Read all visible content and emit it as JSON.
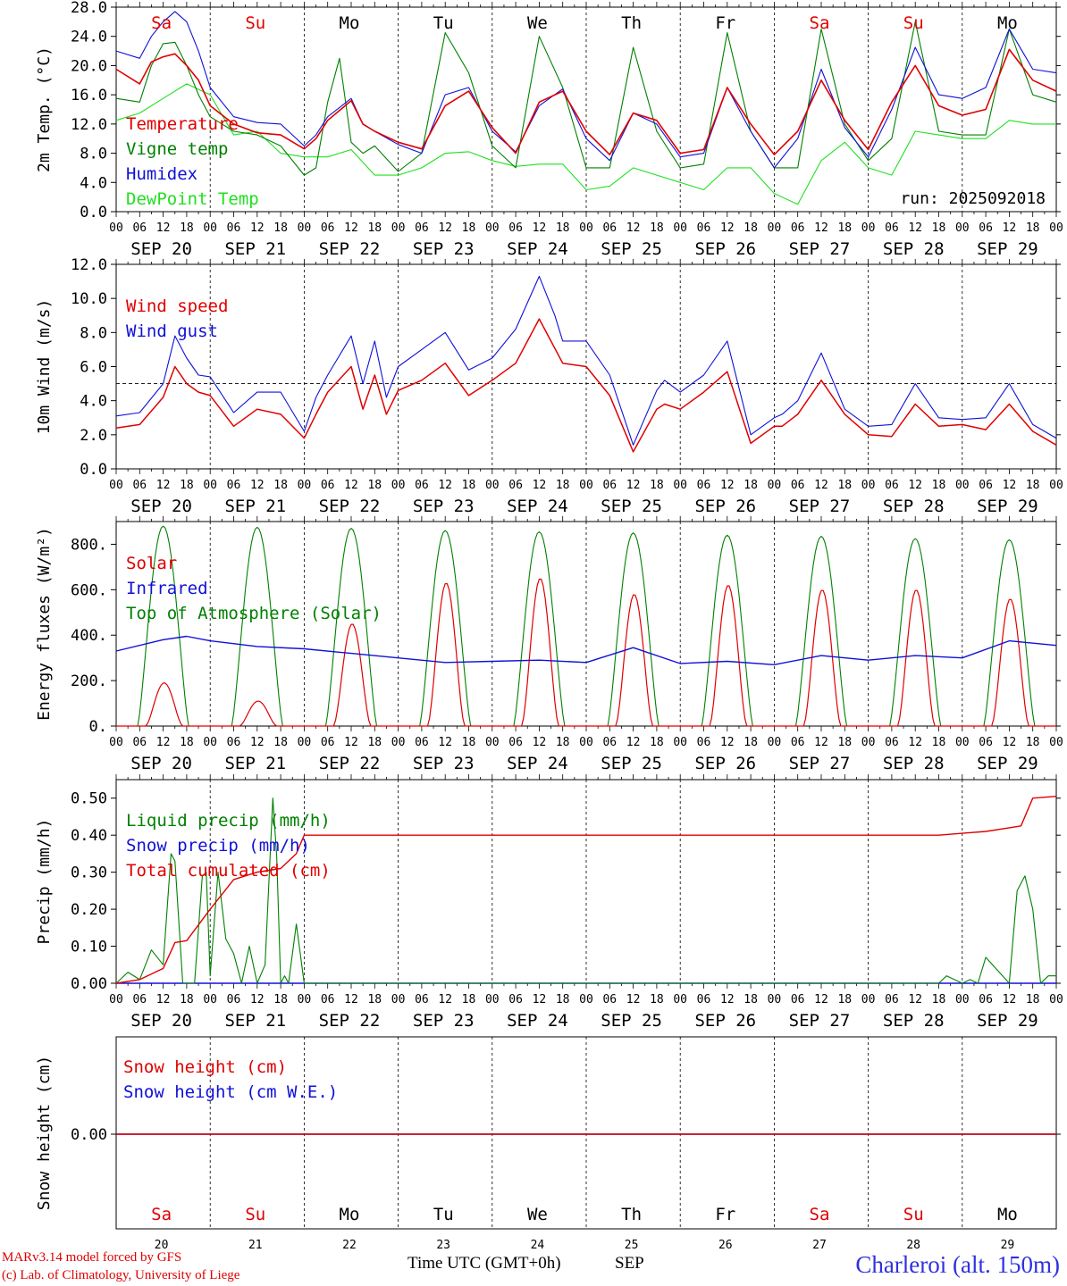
{
  "colors": {
    "red": "#e00000",
    "green": "#008000",
    "blue": "#1010d8",
    "lightgreen": "#20e020",
    "black": "#000000"
  },
  "days": {
    "names": [
      "Sa",
      "Su",
      "Mo",
      "Tu",
      "We",
      "Th",
      "Fr",
      "Sa",
      "Su",
      "Mo"
    ],
    "weekend": [
      true,
      true,
      false,
      false,
      false,
      false,
      false,
      true,
      true,
      false
    ],
    "dates": [
      "SEP 20",
      "SEP 21",
      "SEP 22",
      "SEP 23",
      "SEP 24",
      "SEP 25",
      "SEP 26",
      "SEP 27",
      "SEP 28",
      "SEP 29"
    ],
    "numbers": [
      "20",
      "21",
      "22",
      "23",
      "24",
      "25",
      "26",
      "27",
      "28",
      "29"
    ],
    "hour_labels": [
      "00",
      "06",
      "12",
      "18"
    ],
    "end_hour_label": "00"
  },
  "chart_data": [
    {
      "type": "line",
      "ylabel": "2m Temp. (°C)",
      "ylim": [
        0,
        28
      ],
      "yticks": [
        "0.0",
        "4.0",
        "8.0",
        "12.0",
        "16.0",
        "20.0",
        "24.0",
        "28.0"
      ],
      "x_unit": "hours since SEP 20 00 UTC",
      "annotation": "run: 2025092018",
      "series": [
        {
          "name": "Temperature",
          "color": "red",
          "x": [
            0,
            6,
            9,
            12,
            15,
            18,
            21,
            24,
            30,
            36,
            42,
            48,
            51,
            54,
            60,
            63,
            66,
            72,
            78,
            84,
            90,
            96,
            102,
            108,
            114,
            120,
            126,
            132,
            138,
            144,
            150,
            156,
            162,
            168,
            174,
            180,
            186,
            192,
            198,
            204,
            210,
            216,
            222,
            228,
            234,
            240
          ],
          "y": [
            19.5,
            17.5,
            20.5,
            21.2,
            21.6,
            20,
            18,
            14.5,
            12,
            10.8,
            10.5,
            8.6,
            10,
            12.5,
            15.2,
            12,
            11,
            9.5,
            8.6,
            14.5,
            16.5,
            11.5,
            8,
            15,
            16.5,
            11,
            7.8,
            13.5,
            12.5,
            8,
            8.5,
            17,
            12,
            7.8,
            11,
            18,
            12.5,
            8.5,
            15,
            20,
            14.5,
            13.2,
            14,
            22.2,
            18,
            16.5
          ]
        },
        {
          "name": "Vigne temp",
          "color": "green",
          "x": [
            0,
            6,
            9,
            12,
            15,
            18,
            21,
            24,
            30,
            36,
            42,
            48,
            51,
            54,
            57,
            60,
            63,
            66,
            72,
            78,
            84,
            90,
            96,
            102,
            108,
            114,
            120,
            126,
            132,
            138,
            144,
            150,
            156,
            162,
            168,
            174,
            180,
            186,
            192,
            198,
            204,
            210,
            216,
            222,
            228,
            234,
            240
          ],
          "y": [
            15.5,
            15,
            20,
            23,
            23.2,
            20,
            16,
            13,
            11,
            10.5,
            9,
            5,
            6,
            15,
            21,
            9.5,
            8,
            9,
            5.5,
            8,
            24.5,
            19,
            9,
            6,
            24,
            17,
            6,
            6,
            22.5,
            11,
            6,
            6.5,
            24.5,
            11,
            6,
            6,
            25,
            12,
            7,
            10,
            26,
            11,
            10.5,
            10.5,
            25,
            16,
            15
          ]
        },
        {
          "name": "Humidex",
          "color": "blue",
          "x": [
            0,
            6,
            9,
            12,
            15,
            18,
            21,
            24,
            30,
            36,
            42,
            48,
            51,
            54,
            60,
            63,
            66,
            72,
            78,
            84,
            90,
            96,
            102,
            108,
            114,
            120,
            126,
            132,
            138,
            144,
            150,
            156,
            162,
            168,
            174,
            180,
            186,
            192,
            198,
            204,
            210,
            216,
            222,
            228,
            234,
            240
          ],
          "y": [
            22,
            21,
            24,
            26,
            27.4,
            26,
            22,
            17,
            13,
            12.2,
            12,
            9,
            10.5,
            13,
            15.5,
            12,
            11,
            9.2,
            8,
            16,
            17,
            11,
            8.2,
            14.5,
            16.8,
            10,
            7,
            13.5,
            12,
            7.5,
            8,
            17,
            11,
            6,
            10,
            19.5,
            11.5,
            7.5,
            14,
            22.5,
            16,
            15.5,
            17,
            25,
            19.5,
            19
          ]
        },
        {
          "name": "DewPoint Temp",
          "color": "lightgreen",
          "x": [
            0,
            6,
            12,
            18,
            24,
            30,
            36,
            42,
            48,
            54,
            60,
            66,
            72,
            78,
            84,
            90,
            96,
            102,
            108,
            114,
            120,
            126,
            132,
            138,
            144,
            150,
            156,
            162,
            168,
            174,
            180,
            186,
            192,
            198,
            204,
            210,
            216,
            222,
            228,
            234,
            240
          ],
          "y": [
            12.5,
            13.5,
            15.5,
            17.5,
            16,
            10.5,
            11,
            8,
            7.5,
            7.5,
            8.5,
            5,
            5,
            6,
            8,
            8.2,
            7,
            6.2,
            6.5,
            6.5,
            3,
            3.5,
            6,
            5,
            4,
            3,
            6,
            6,
            2.5,
            1,
            7,
            9.5,
            6,
            5,
            11,
            10.5,
            10,
            10,
            12.5,
            12,
            12
          ]
        }
      ]
    },
    {
      "type": "line",
      "ylabel": "10m Wind (m/s)",
      "ylim": [
        0,
        12
      ],
      "yticks": [
        "0.0",
        "2.0",
        "4.0",
        "6.0",
        "8.0",
        "10.0",
        "12.0"
      ],
      "reference_line": 5.0,
      "series": [
        {
          "name": "Wind speed",
          "color": "red",
          "x": [
            0,
            6,
            12,
            15,
            18,
            21,
            24,
            30,
            36,
            42,
            48,
            51,
            54,
            60,
            63,
            66,
            69,
            72,
            78,
            84,
            90,
            96,
            102,
            108,
            114,
            120,
            126,
            132,
            138,
            140,
            144,
            150,
            156,
            162,
            168,
            170,
            174,
            180,
            186,
            192,
            198,
            204,
            210,
            216,
            222,
            228,
            234,
            240
          ],
          "y": [
            2.4,
            2.6,
            4.2,
            6,
            5,
            4.5,
            4.3,
            2.5,
            3.5,
            3.2,
            1.8,
            3.2,
            4.5,
            6,
            3.5,
            5.5,
            3.2,
            4.6,
            5.2,
            6.2,
            4.3,
            5.2,
            6.2,
            8.8,
            6.2,
            6,
            4.3,
            1.0,
            3.5,
            3.8,
            3.5,
            4.5,
            5.7,
            1.5,
            2.5,
            2.5,
            3.2,
            5.2,
            3.2,
            2.0,
            1.9,
            3.8,
            2.5,
            2.6,
            2.3,
            3.8,
            2.2,
            1.4
          ]
        },
        {
          "name": "Wind gust",
          "color": "blue",
          "x": [
            0,
            6,
            12,
            15,
            18,
            21,
            24,
            30,
            36,
            42,
            48,
            51,
            54,
            60,
            63,
            66,
            69,
            72,
            78,
            84,
            90,
            96,
            102,
            108,
            112,
            114,
            120,
            126,
            132,
            138,
            140,
            144,
            150,
            156,
            162,
            168,
            170,
            174,
            180,
            186,
            192,
            198,
            204,
            210,
            216,
            222,
            228,
            234,
            240
          ],
          "y": [
            3.1,
            3.3,
            5.0,
            7.8,
            6.5,
            5.5,
            5.4,
            3.3,
            4.5,
            4.5,
            2.2,
            4.2,
            5.5,
            7.8,
            5.0,
            7.5,
            4.2,
            6.0,
            7.0,
            8.0,
            5.8,
            6.5,
            8.2,
            11.3,
            9.0,
            7.5,
            7.5,
            5.5,
            1.4,
            4.6,
            5.2,
            4.5,
            5.5,
            7.5,
            2.0,
            3.0,
            3.2,
            4.0,
            6.8,
            3.5,
            2.5,
            2.6,
            5.0,
            3.0,
            2.9,
            3.0,
            5.0,
            2.6,
            1.8
          ]
        }
      ]
    },
    {
      "type": "line",
      "ylabel": "Energy fluxes (W/m²)",
      "ylim": [
        0,
        900
      ],
      "yticks": [
        "0.",
        "200.",
        "400.",
        "600.",
        "800."
      ],
      "series": [
        {
          "name": "Solar",
          "color": "red",
          "daily_peaks": [
            190,
            110,
            450,
            630,
            650,
            580,
            620,
            600,
            600,
            560
          ]
        },
        {
          "name": "Infrared",
          "color": "blue",
          "x": [
            0,
            12,
            18,
            24,
            36,
            48,
            60,
            72,
            84,
            96,
            108,
            120,
            132,
            144,
            156,
            168,
            180,
            192,
            204,
            216,
            228,
            240
          ],
          "y": [
            330,
            380,
            395,
            375,
            350,
            340,
            320,
            300,
            280,
            285,
            290,
            280,
            345,
            275,
            285,
            270,
            310,
            290,
            310,
            300,
            375,
            355
          ]
        },
        {
          "name": "Top of Atmosphere (Solar)",
          "color": "green",
          "daily_peaks": [
            880,
            875,
            870,
            860,
            855,
            850,
            840,
            835,
            825,
            820
          ]
        }
      ]
    },
    {
      "type": "line",
      "ylabel": "Precip (mm/h)",
      "ylim": [
        0,
        0.55
      ],
      "yticks": [
        "0.00",
        "0.10",
        "0.20",
        "0.30",
        "0.40",
        "0.50"
      ],
      "series": [
        {
          "name": "Liquid precip (mm/h)",
          "color": "green",
          "x": [
            0,
            3,
            6,
            9,
            12,
            14,
            15,
            17,
            20,
            22,
            23,
            24,
            26,
            28,
            30,
            32,
            34,
            36,
            38,
            40,
            41,
            42,
            43,
            44,
            46,
            47,
            48,
            210,
            212,
            216,
            218,
            220,
            222,
            228,
            230,
            232,
            234,
            236,
            238,
            240
          ],
          "y": [
            0,
            0.03,
            0.01,
            0.09,
            0.05,
            0.35,
            0.33,
            0,
            0,
            0.29,
            0.3,
            0.02,
            0.3,
            0.12,
            0.08,
            0,
            0.1,
            0,
            0.05,
            0.5,
            0.34,
            0,
            0.02,
            0,
            0.16,
            0.08,
            0,
            0,
            0.02,
            0,
            0.01,
            0,
            0.07,
            0,
            0.25,
            0.29,
            0.2,
            0,
            0.02,
            0.02
          ]
        },
        {
          "name": "Snow precip (mm/h)",
          "color": "blue",
          "x": [
            0,
            240
          ],
          "y": [
            0,
            0
          ]
        },
        {
          "name": "Total cumulated (cm)",
          "color": "red",
          "x": [
            0,
            6,
            12,
            15,
            18,
            24,
            30,
            36,
            42,
            46,
            48,
            54,
            144,
            210,
            216,
            222,
            228,
            231,
            234,
            240
          ],
          "y": [
            0,
            0.01,
            0.04,
            0.11,
            0.115,
            0.2,
            0.28,
            0.3,
            0.31,
            0.35,
            0.4,
            0.4,
            0.4,
            0.4,
            0.405,
            0.41,
            0.42,
            0.425,
            0.5,
            0.505
          ]
        }
      ]
    },
    {
      "type": "line",
      "ylabel": "Snow height (cm)",
      "yticks": [
        "0.00"
      ],
      "series": [
        {
          "name": "Snow height (cm)",
          "color": "red",
          "x": [
            0,
            240
          ],
          "y": [
            0,
            0
          ]
        },
        {
          "name": "Snow height (cm W.E.)",
          "color": "blue",
          "x": [
            0,
            240
          ],
          "y": [
            0,
            0
          ]
        }
      ]
    }
  ],
  "footer": {
    "model_line": "MARv3.14 model forced by GFS",
    "copyright_line": "(c) Lab. of Climatology, University of Liege",
    "xaxis_title": "Time UTC (GMT+0h)",
    "month": "SEP",
    "station": "Charleroi (alt. 150m)"
  }
}
